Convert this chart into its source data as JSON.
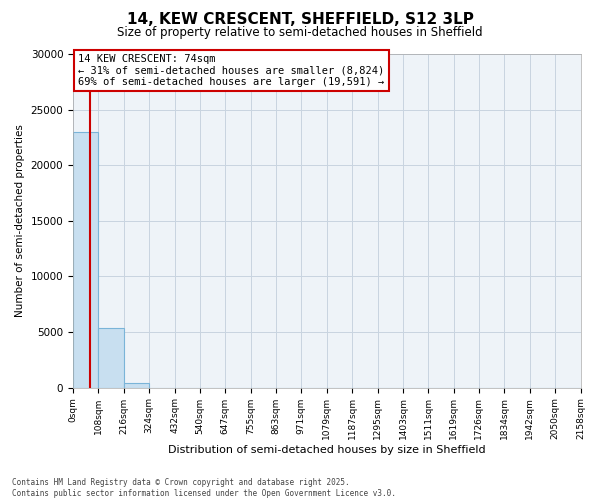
{
  "title": "14, KEW CRESCENT, SHEFFIELD, S12 3LP",
  "subtitle": "Size of property relative to semi-detached houses in Sheffield",
  "xlabel": "Distribution of semi-detached houses by size in Sheffield",
  "ylabel": "Number of semi-detached properties",
  "property_size": 74,
  "annotation_text": "14 KEW CRESCENT: 74sqm\n← 31% of semi-detached houses are smaller (8,824)\n69% of semi-detached houses are larger (19,591) →",
  "footer_line1": "Contains HM Land Registry data © Crown copyright and database right 2025.",
  "footer_line2": "Contains public sector information licensed under the Open Government Licence v3.0.",
  "bin_edges": [
    0,
    108,
    216,
    324,
    432,
    540,
    647,
    755,
    863,
    971,
    1079,
    1187,
    1295,
    1403,
    1511,
    1619,
    1726,
    1834,
    1942,
    2050,
    2158
  ],
  "bin_counts": [
    23000,
    5400,
    370,
    0,
    0,
    0,
    0,
    0,
    0,
    0,
    0,
    0,
    0,
    0,
    0,
    0,
    0,
    0,
    0,
    0
  ],
  "bar_color": "#c8dff0",
  "bar_edge_color": "#7ab4d8",
  "redline_color": "#cc0000",
  "annotation_box_color": "#cc0000",
  "grid_color": "#c8d4e0",
  "background_color": "#ffffff",
  "plot_bg_color": "#eef3f8",
  "ylim": [
    0,
    30000
  ],
  "yticks": [
    0,
    5000,
    10000,
    15000,
    20000,
    25000,
    30000
  ]
}
